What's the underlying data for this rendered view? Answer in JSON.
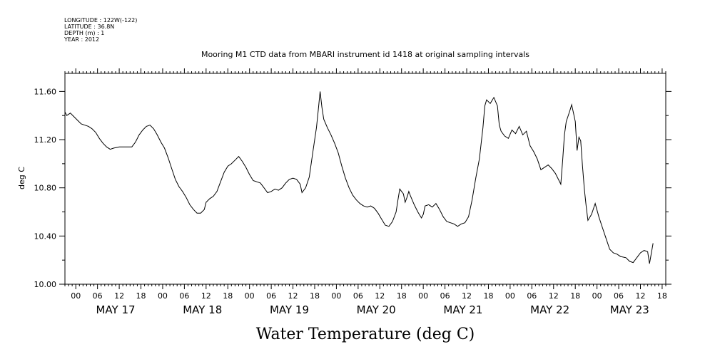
{
  "header_info": [
    "LONGITUDE : 122W(-122)",
    "LATITUDE : 36.8N",
    "DEPTH (m) : 1",
    "YEAR : 2012"
  ],
  "chart_data": {
    "type": "line",
    "title": "Mooring M1 CTD data from MBARI instrument id 1418 at original sampling intervals",
    "ylabel": "deg C",
    "xlabel_big": "Water Temperature (deg C)",
    "ylim": [
      10.0,
      11.75
    ],
    "yticks": [
      {
        "value": 10.0,
        "label": "10.00"
      },
      {
        "value": 10.4,
        "label": "10.40"
      },
      {
        "value": 10.8,
        "label": "10.80"
      },
      {
        "value": 11.2,
        "label": "11.20"
      },
      {
        "value": 11.6,
        "label": "11.60"
      }
    ],
    "x_unit": "hours since May 17 00:00",
    "xlim": [
      -3,
      163
    ],
    "hour_ticks": [
      {
        "t": 0,
        "label": "00"
      },
      {
        "t": 6,
        "label": "06"
      },
      {
        "t": 12,
        "label": "12"
      },
      {
        "t": 18,
        "label": "18"
      },
      {
        "t": 24,
        "label": "00"
      },
      {
        "t": 30,
        "label": "06"
      },
      {
        "t": 36,
        "label": "12"
      },
      {
        "t": 42,
        "label": "18"
      },
      {
        "t": 48,
        "label": "00"
      },
      {
        "t": 54,
        "label": "06"
      },
      {
        "t": 60,
        "label": "12"
      },
      {
        "t": 66,
        "label": "18"
      },
      {
        "t": 72,
        "label": "00"
      },
      {
        "t": 78,
        "label": "06"
      },
      {
        "t": 84,
        "label": "12"
      },
      {
        "t": 90,
        "label": "18"
      },
      {
        "t": 96,
        "label": "00"
      },
      {
        "t": 102,
        "label": "06"
      },
      {
        "t": 108,
        "label": "12"
      },
      {
        "t": 114,
        "label": "18"
      },
      {
        "t": 120,
        "label": "00"
      },
      {
        "t": 126,
        "label": "06"
      },
      {
        "t": 132,
        "label": "12"
      },
      {
        "t": 138,
        "label": "18"
      },
      {
        "t": 144,
        "label": "00"
      },
      {
        "t": 150,
        "label": "06"
      },
      {
        "t": 156,
        "label": "12"
      },
      {
        "t": 162,
        "label": "18"
      }
    ],
    "day_labels": [
      {
        "t": 11,
        "label": "MAY 17"
      },
      {
        "t": 35,
        "label": "MAY 18"
      },
      {
        "t": 59,
        "label": "MAY 19"
      },
      {
        "t": 83,
        "label": "MAY 20"
      },
      {
        "t": 107,
        "label": "MAY 21"
      },
      {
        "t": 131,
        "label": "MAY 22"
      },
      {
        "t": 153,
        "label": "MAY 23"
      }
    ],
    "series": [
      {
        "color": "#000000",
        "points": [
          [
            -3.0,
            11.43
          ],
          [
            -2.5,
            11.4
          ],
          [
            -1.5,
            11.42
          ],
          [
            -0.5,
            11.39
          ],
          [
            0.5,
            11.36
          ],
          [
            1.5,
            11.33
          ],
          [
            2.5,
            11.32
          ],
          [
            3.5,
            11.31
          ],
          [
            4.5,
            11.29
          ],
          [
            5.5,
            11.26
          ],
          [
            6.5,
            11.21
          ],
          [
            7.5,
            11.17
          ],
          [
            8.5,
            11.14
          ],
          [
            9.5,
            11.12
          ],
          [
            10.5,
            11.13
          ],
          [
            12,
            11.14
          ],
          [
            14,
            11.14
          ],
          [
            15.5,
            11.14
          ],
          [
            16.5,
            11.18
          ],
          [
            17.5,
            11.24
          ],
          [
            18.5,
            11.28
          ],
          [
            19.5,
            11.31
          ],
          [
            20.5,
            11.32
          ],
          [
            21.5,
            11.29
          ],
          [
            22.5,
            11.24
          ],
          [
            23.5,
            11.18
          ],
          [
            24.5,
            11.13
          ],
          [
            25.5,
            11.05
          ],
          [
            26.5,
            10.96
          ],
          [
            27.5,
            10.87
          ],
          [
            28.5,
            10.81
          ],
          [
            29.5,
            10.77
          ],
          [
            30.5,
            10.72
          ],
          [
            31.5,
            10.66
          ],
          [
            32.5,
            10.62
          ],
          [
            33.5,
            10.59
          ],
          [
            34.5,
            10.59
          ],
          [
            35.5,
            10.62
          ],
          [
            36,
            10.68
          ],
          [
            37,
            10.71
          ],
          [
            38,
            10.73
          ],
          [
            39,
            10.77
          ],
          [
            40,
            10.85
          ],
          [
            41,
            10.93
          ],
          [
            42,
            10.98
          ],
          [
            43,
            11.0
          ],
          [
            44,
            11.03
          ],
          [
            45,
            11.06
          ],
          [
            46,
            11.02
          ],
          [
            47,
            10.97
          ],
          [
            48,
            10.91
          ],
          [
            49,
            10.86
          ],
          [
            50,
            10.85
          ],
          [
            51,
            10.84
          ],
          [
            52,
            10.8
          ],
          [
            53,
            10.76
          ],
          [
            54,
            10.77
          ],
          [
            55,
            10.79
          ],
          [
            56,
            10.78
          ],
          [
            57,
            10.8
          ],
          [
            58,
            10.84
          ],
          [
            59,
            10.87
          ],
          [
            60,
            10.88
          ],
          [
            61,
            10.87
          ],
          [
            62,
            10.83
          ],
          [
            62.5,
            10.76
          ],
          [
            63.5,
            10.8
          ],
          [
            64.5,
            10.89
          ],
          [
            65.5,
            11.1
          ],
          [
            66.5,
            11.3
          ],
          [
            67,
            11.45
          ],
          [
            67.5,
            11.6
          ],
          [
            68,
            11.47
          ],
          [
            68.5,
            11.37
          ],
          [
            69.5,
            11.3
          ],
          [
            70.5,
            11.24
          ],
          [
            71.5,
            11.17
          ],
          [
            72.5,
            11.09
          ],
          [
            73.5,
            10.98
          ],
          [
            74.5,
            10.88
          ],
          [
            75.5,
            10.8
          ],
          [
            76.5,
            10.74
          ],
          [
            77.5,
            10.7
          ],
          [
            78.5,
            10.67
          ],
          [
            79.5,
            10.65
          ],
          [
            80.5,
            10.64
          ],
          [
            81.5,
            10.65
          ],
          [
            82.5,
            10.63
          ],
          [
            83.5,
            10.59
          ],
          [
            84.5,
            10.54
          ],
          [
            85.5,
            10.49
          ],
          [
            86.5,
            10.48
          ],
          [
            87.5,
            10.52
          ],
          [
            88.5,
            10.6
          ],
          [
            89,
            10.7
          ],
          [
            89.5,
            10.79
          ],
          [
            90.5,
            10.75
          ],
          [
            91,
            10.68
          ],
          [
            91.5,
            10.72
          ],
          [
            92,
            10.77
          ],
          [
            92.5,
            10.73
          ],
          [
            93.5,
            10.66
          ],
          [
            94.5,
            10.6
          ],
          [
            95.5,
            10.55
          ],
          [
            96,
            10.58
          ],
          [
            96.5,
            10.65
          ],
          [
            97.5,
            10.66
          ],
          [
            98.5,
            10.64
          ],
          [
            99.5,
            10.67
          ],
          [
            100.5,
            10.62
          ],
          [
            101.5,
            10.56
          ],
          [
            102.5,
            10.52
          ],
          [
            103.5,
            10.51
          ],
          [
            104.5,
            10.5
          ],
          [
            105.5,
            10.48
          ],
          [
            106.5,
            10.5
          ],
          [
            107.5,
            10.51
          ],
          [
            108.5,
            10.56
          ],
          [
            109.5,
            10.7
          ],
          [
            110.5,
            10.88
          ],
          [
            111.5,
            11.04
          ],
          [
            112.5,
            11.3
          ],
          [
            113,
            11.48
          ],
          [
            113.5,
            11.53
          ],
          [
            114.5,
            11.5
          ],
          [
            115.5,
            11.55
          ],
          [
            116.5,
            11.48
          ],
          [
            117,
            11.32
          ],
          [
            117.5,
            11.27
          ],
          [
            118.5,
            11.23
          ],
          [
            119.5,
            11.21
          ],
          [
            120.5,
            11.28
          ],
          [
            121.5,
            11.25
          ],
          [
            122.5,
            11.31
          ],
          [
            123.5,
            11.24
          ],
          [
            124.5,
            11.27
          ],
          [
            125.5,
            11.15
          ],
          [
            126.5,
            11.1
          ],
          [
            127.5,
            11.04
          ],
          [
            128.5,
            10.95
          ],
          [
            129.5,
            10.97
          ],
          [
            130.5,
            10.99
          ],
          [
            131.5,
            10.96
          ],
          [
            132.5,
            10.92
          ],
          [
            133.5,
            10.86
          ],
          [
            134,
            10.83
          ],
          [
            134.5,
            11.02
          ],
          [
            135,
            11.24
          ],
          [
            135.5,
            11.35
          ],
          [
            136.5,
            11.44
          ],
          [
            137,
            11.49
          ],
          [
            137.5,
            11.42
          ],
          [
            138,
            11.35
          ],
          [
            138.5,
            11.11
          ],
          [
            139,
            11.22
          ],
          [
            139.5,
            11.19
          ],
          [
            140,
            10.98
          ],
          [
            140.5,
            10.79
          ],
          [
            141,
            10.65
          ],
          [
            141.5,
            10.53
          ],
          [
            142.5,
            10.58
          ],
          [
            143.5,
            10.67
          ],
          [
            144.5,
            10.56
          ],
          [
            145.5,
            10.47
          ],
          [
            146.5,
            10.38
          ],
          [
            147.5,
            10.29
          ],
          [
            148.5,
            10.26
          ],
          [
            149.5,
            10.25
          ],
          [
            150.5,
            10.23
          ],
          [
            152,
            10.22
          ],
          [
            153,
            10.19
          ],
          [
            154,
            10.18
          ],
          [
            155,
            10.22
          ],
          [
            156,
            10.26
          ],
          [
            157,
            10.28
          ],
          [
            158,
            10.27
          ],
          [
            158.5,
            10.17
          ],
          [
            159.5,
            10.34
          ]
        ]
      }
    ]
  }
}
